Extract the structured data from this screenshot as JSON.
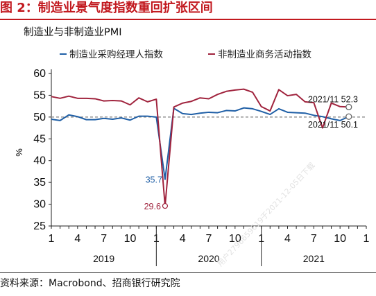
{
  "figure_title": "图 2：制造业景气度指数重回扩张区间",
  "source_note": "资料来源：Macrobond、招商银行研究院",
  "watermark": "用户2796659619于2021-12-05日下载",
  "colors": {
    "accent": "#c2191f",
    "manufacturing": "#1f5fa6",
    "nonmanufacturing": "#a0233d",
    "reference_line": "#9a9a9a"
  },
  "chart_data": {
    "type": "line",
    "title": "制造业与非制造业PMI",
    "xlabel": "",
    "ylabel": "%",
    "ylim": [
      25,
      60
    ],
    "yticks": [
      25,
      30,
      35,
      40,
      45,
      50,
      55,
      60
    ],
    "reference_line": 50,
    "grid": false,
    "legend_position": "top",
    "x": [
      "2019-01",
      "2019-02",
      "2019-03",
      "2019-04",
      "2019-05",
      "2019-06",
      "2019-07",
      "2019-08",
      "2019-09",
      "2019-10",
      "2019-11",
      "2019-12",
      "2020-01",
      "2020-02",
      "2020-03",
      "2020-04",
      "2020-05",
      "2020-06",
      "2020-07",
      "2020-08",
      "2020-09",
      "2020-10",
      "2020-11",
      "2020-12",
      "2021-01",
      "2021-02",
      "2021-03",
      "2021-04",
      "2021-05",
      "2021-06",
      "2021-07",
      "2021-08",
      "2021-09",
      "2021-10",
      "2021-11"
    ],
    "x_tick_labels": [
      "1",
      "4",
      "7",
      "10",
      "1",
      "4",
      "7",
      "10",
      "1",
      "4",
      "7",
      "10",
      "1"
    ],
    "year_labels": [
      "2019",
      "2020",
      "2021"
    ],
    "series": [
      {
        "name": "制造业采购经理人指数",
        "values": [
          49.5,
          49.2,
          50.5,
          50.1,
          49.4,
          49.4,
          49.7,
          49.5,
          49.8,
          49.3,
          50.2,
          50.2,
          50.0,
          35.7,
          52.0,
          50.8,
          50.6,
          50.9,
          51.1,
          51.0,
          51.5,
          51.4,
          52.1,
          51.9,
          51.3,
          50.6,
          51.9,
          51.1,
          51.0,
          50.9,
          50.4,
          50.1,
          49.6,
          49.2,
          50.1
        ]
      },
      {
        "name": "非制造业商务活动指数",
        "values": [
          54.7,
          54.3,
          54.8,
          54.3,
          54.3,
          54.2,
          53.7,
          53.8,
          53.7,
          52.8,
          54.4,
          53.5,
          54.1,
          29.6,
          52.3,
          53.2,
          53.6,
          54.4,
          54.2,
          55.2,
          55.9,
          56.2,
          56.4,
          55.7,
          52.4,
          51.4,
          56.3,
          54.9,
          55.2,
          53.5,
          53.3,
          47.5,
          53.2,
          52.4,
          52.3
        ]
      }
    ],
    "annotations": [
      {
        "text": "35.7",
        "series": 0,
        "x": "2020-02"
      },
      {
        "text": "29.6",
        "series": 1,
        "x": "2020-02"
      },
      {
        "text": "2021/11 52.3",
        "series": 1,
        "x": "2021-11"
      },
      {
        "text": "2021/11 50.1",
        "series": 0,
        "x": "2021-11"
      }
    ]
  }
}
